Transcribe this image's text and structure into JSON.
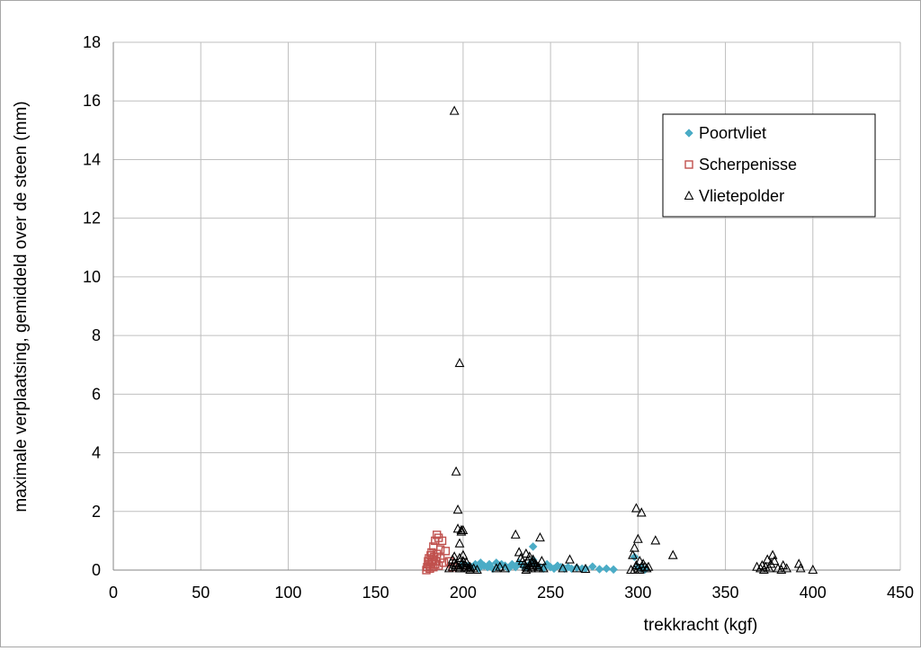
{
  "chart_data": {
    "type": "scatter",
    "title": "",
    "xlabel": "trekkracht (kgf)",
    "ylabel": "maximale verplaatsing, gemiddeld over  de steen (mm)",
    "xlim": [
      0,
      450
    ],
    "ylim": [
      0,
      18
    ],
    "xticks": [
      0,
      50,
      100,
      150,
      200,
      250,
      300,
      350,
      400,
      450
    ],
    "yticks": [
      0,
      2,
      4,
      6,
      8,
      10,
      12,
      14,
      16,
      18
    ],
    "grid": true,
    "legend_position": "top-right",
    "series": [
      {
        "name": "Poortvliet",
        "marker": "diamond",
        "color": "#4bacc6",
        "x": [
          200,
          203,
          205,
          207,
          209,
          210,
          212,
          214,
          215,
          217,
          219,
          220,
          222,
          224,
          226,
          228,
          230,
          232,
          234,
          236,
          238,
          240,
          240,
          242,
          244,
          246,
          248,
          250,
          252,
          254,
          256,
          258,
          260,
          262,
          265,
          268,
          270,
          274,
          278,
          282,
          286,
          298,
          300,
          302,
          304
        ],
        "y": [
          0.2,
          0.15,
          0.1,
          0.2,
          0.05,
          0.25,
          0.15,
          0.1,
          0.2,
          0.05,
          0.25,
          0.1,
          0.2,
          0.15,
          0.05,
          0.2,
          0.1,
          0.25,
          0.15,
          0.1,
          0.2,
          0.8,
          0.35,
          0.15,
          0.1,
          0.05,
          0.2,
          0.1,
          0.05,
          0.15,
          0.1,
          0.05,
          0.1,
          0.05,
          0.08,
          0.05,
          0.05,
          0.12,
          0.03,
          0.05,
          0.02,
          0.45,
          0.1,
          0.05,
          0.02
        ]
      },
      {
        "name": "Scherpenisse",
        "marker": "square",
        "color": "#c0504d",
        "x": [
          179,
          179.5,
          180,
          180,
          180.5,
          181,
          181,
          181.5,
          182,
          182,
          182.5,
          183,
          183,
          183.5,
          184,
          184,
          184.5,
          185,
          185,
          186,
          186,
          187,
          187,
          188,
          189,
          190,
          192,
          194
        ],
        "y": [
          0.0,
          0.1,
          0.2,
          0.3,
          0.4,
          0.05,
          0.15,
          0.5,
          0.25,
          0.6,
          0.35,
          0.1,
          0.8,
          0.45,
          0.2,
          1.0,
          0.3,
          1.2,
          0.55,
          0.15,
          1.1,
          0.7,
          0.4,
          1.0,
          0.25,
          0.65,
          0.3,
          0.1
        ]
      },
      {
        "name": "Vlietepolder",
        "marker": "triangle",
        "color": "#000000",
        "x": [
          195,
          196,
          197,
          198,
          199,
          200,
          197,
          198,
          199,
          200,
          194,
          195,
          196,
          197,
          198,
          199,
          200,
          201,
          202,
          203,
          192,
          194,
          196,
          198,
          200,
          202,
          204,
          206,
          208,
          195,
          198,
          201,
          204,
          219,
          221,
          224,
          230,
          232,
          233,
          234,
          235,
          236,
          236,
          237,
          237,
          238,
          238,
          239,
          239,
          240,
          240,
          241,
          242,
          243,
          244,
          245,
          236,
          240,
          243,
          246,
          257,
          261,
          265,
          270,
          296,
          297,
          298,
          299,
          300,
          301,
          302,
          303,
          304,
          305,
          298,
          299,
          300,
          301,
          302,
          306,
          310,
          320,
          368,
          370,
          371,
          372,
          373,
          374,
          375,
          376,
          377,
          378,
          380,
          382,
          383,
          385,
          392,
          393,
          400
        ],
        "y": [
          15.65,
          3.35,
          1.4,
          7.05,
          1.35,
          1.35,
          2.05,
          0.9,
          1.3,
          0.5,
          0.35,
          0.25,
          0.15,
          0.1,
          0.05,
          0.2,
          0.3,
          0.15,
          0.1,
          0.05,
          0.05,
          0.1,
          0.2,
          0.05,
          0.15,
          0.25,
          0.1,
          0.05,
          0.0,
          0.45,
          0.4,
          0.05,
          0.0,
          0.05,
          0.1,
          0.05,
          1.2,
          0.6,
          0.4,
          0.3,
          0.2,
          0.1,
          0.55,
          0.05,
          0.3,
          0.15,
          0.45,
          0.25,
          0.05,
          0.35,
          0.1,
          0.2,
          0.15,
          0.05,
          1.1,
          0.3,
          0.0,
          0.25,
          0.1,
          0.05,
          0.05,
          0.35,
          0.05,
          0.03,
          0.0,
          0.5,
          0.75,
          2.1,
          1.05,
          0.3,
          1.95,
          0.2,
          0.1,
          0.05,
          0.0,
          0.15,
          0.05,
          0.0,
          0.1,
          0.1,
          1.0,
          0.5,
          0.1,
          0.05,
          0.15,
          0.0,
          0.1,
          0.35,
          0.05,
          0.2,
          0.5,
          0.3,
          0.05,
          0.0,
          0.15,
          0.05,
          0.2,
          0.05,
          0.0
        ]
      }
    ]
  }
}
